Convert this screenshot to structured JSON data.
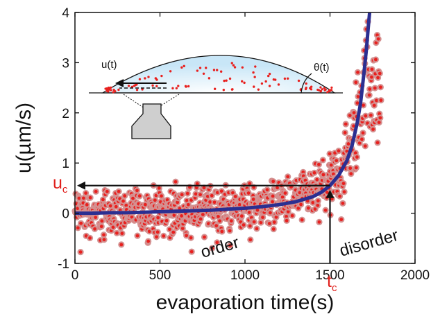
{
  "chart_data": {
    "type": "scatter",
    "xlabel": "evaporation time(s)",
    "ylabel": "u(µm/s)",
    "xlim": [
      0,
      2000
    ],
    "ylim": [
      -1,
      4
    ],
    "xticks": [
      "0",
      "500",
      "1000",
      "1500",
      "2000"
    ],
    "yticks": [
      "-1",
      "0",
      "1",
      "2",
      "3",
      "4"
    ],
    "grid": false,
    "scatter_color": "#e8201e",
    "scatter_halo_color": "#d49090",
    "fit_color": "#2b2f91",
    "scatter_series": {
      "x": [
        0,
        50,
        100,
        150,
        200,
        250,
        300,
        350,
        400,
        450,
        500,
        550,
        600,
        650,
        700,
        750,
        800,
        850,
        900,
        950,
        1000,
        1050,
        1100,
        1150,
        1200,
        1250,
        1300,
        1350,
        1400,
        1450,
        1500,
        1550,
        1600,
        1620,
        1640,
        1660,
        1680,
        1700,
        1720,
        1740,
        1760,
        1780,
        1800
      ],
      "y": [
        0.0,
        0.05,
        0.0,
        -0.05,
        0.05,
        0.05,
        0.0,
        0.05,
        0.05,
        0.05,
        0.05,
        0.05,
        0.05,
        0.1,
        0.05,
        0.1,
        0.1,
        0.1,
        0.1,
        0.1,
        0.15,
        0.15,
        0.15,
        0.2,
        0.25,
        0.25,
        0.3,
        0.35,
        0.4,
        0.5,
        0.6,
        0.8,
        1.1,
        1.3,
        1.5,
        1.8,
        2.1,
        2.4,
        2.7,
        2.8,
        2.6,
        2.4,
        2.2
      ],
      "spread": [
        0.25,
        0.22,
        0.22,
        0.24,
        0.22,
        0.22,
        0.22,
        0.22,
        0.24,
        0.22,
        0.22,
        0.22,
        0.22,
        0.22,
        0.22,
        0.22,
        0.22,
        0.22,
        0.22,
        0.22,
        0.22,
        0.22,
        0.22,
        0.22,
        0.22,
        0.22,
        0.22,
        0.22,
        0.24,
        0.25,
        0.28,
        0.32,
        0.35,
        0.4,
        0.45,
        0.5,
        0.55,
        0.6,
        0.6,
        0.65,
        0.6,
        0.55,
        0.5
      ]
    },
    "fit_series": {
      "x": [
        0,
        100,
        200,
        300,
        400,
        500,
        600,
        700,
        800,
        900,
        1000,
        1100,
        1200,
        1300,
        1400,
        1450,
        1500,
        1550,
        1600,
        1630,
        1660,
        1680,
        1700,
        1715,
        1725,
        1733
      ],
      "y": [
        0.0,
        0.0,
        0.01,
        0.01,
        0.02,
        0.03,
        0.04,
        0.05,
        0.06,
        0.08,
        0.1,
        0.13,
        0.17,
        0.23,
        0.33,
        0.42,
        0.55,
        0.75,
        1.05,
        1.35,
        1.8,
        2.2,
        2.8,
        3.3,
        3.7,
        4.0
      ]
    },
    "annotations": {
      "order": "order",
      "disorder": "disorder",
      "uc_main": "u",
      "uc_sub": "c",
      "tc_main": "t",
      "tc_sub": "c",
      "tc_x": 1500,
      "uc_y": 0.55
    },
    "inset": {
      "u_label": "u(t)",
      "theta_label": "θ(t)",
      "drop_fill": "#c8e6f7",
      "particle_color": "#e8201e"
    }
  }
}
